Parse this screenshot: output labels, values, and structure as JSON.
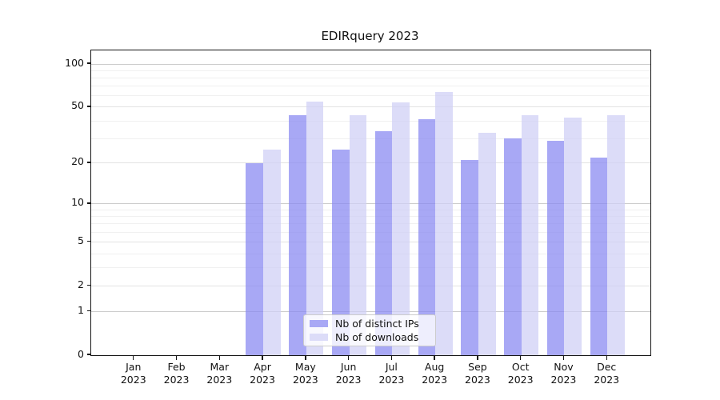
{
  "figure": {
    "title": "EDIRquery 2023"
  },
  "chart_data": {
    "type": "bar",
    "title": "EDIRquery 2023",
    "categories": [
      "Jan",
      "Feb",
      "Mar",
      "Apr",
      "May",
      "Jun",
      "Jul",
      "Aug",
      "Sep",
      "Oct",
      "Nov",
      "Dec"
    ],
    "category_year": "2023",
    "series": [
      {
        "name": "Nb of distinct IPs",
        "color": "#a8a8f5",
        "color_rgba": "rgba(139,139,242,0.75)",
        "values": [
          0,
          0,
          0,
          20,
          44,
          25,
          34,
          41,
          21,
          30,
          29,
          22
        ]
      },
      {
        "name": "Nb of downloads",
        "color": "#dcdcf8",
        "color_rgba": "rgba(208,208,246,0.75)",
        "values": [
          0,
          0,
          0,
          25,
          55,
          44,
          54,
          64,
          33,
          44,
          42,
          44
        ]
      }
    ],
    "xlabel": "",
    "ylabel": "",
    "yscale": "symlog-log1p",
    "ylim": [
      0,
      100
    ],
    "yticks": [
      0,
      1,
      2,
      5,
      10,
      20,
      50,
      100
    ],
    "yticks_major": [
      1,
      10,
      100
    ],
    "yticks_minor": [
      3,
      4,
      6,
      7,
      8,
      9,
      30,
      40,
      60,
      70,
      80,
      90
    ],
    "grid": true,
    "legend_position": "lower center"
  },
  "legend": {
    "items": [
      {
        "label": "Nb of distinct IPs"
      },
      {
        "label": "Nb of downloads"
      }
    ]
  },
  "colors": {
    "background": "#ffffff",
    "spine": "#141414",
    "grid_major": "#cccccc",
    "grid_mid": "#e3e3e3",
    "grid_minor": "#f0f0f0",
    "bar_dark": "#a8a8f5",
    "bar_light": "#dcdcf8"
  }
}
